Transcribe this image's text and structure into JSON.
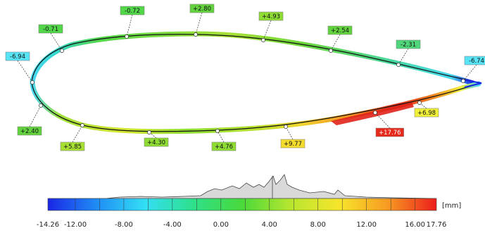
{
  "diagram": {
    "deviation_labels": [
      {
        "id": "l01",
        "text": "-6.94",
        "fill": "#58e4f4"
      },
      {
        "id": "l02",
        "text": "-0.71",
        "fill": "#52d64a"
      },
      {
        "id": "l03",
        "text": "-0.72",
        "fill": "#52d64a"
      },
      {
        "id": "l04",
        "text": "+2.80",
        "fill": "#62d33e"
      },
      {
        "id": "l05",
        "text": "+4.93",
        "fill": "#8edc34"
      },
      {
        "id": "l06",
        "text": "+2.54",
        "fill": "#62d33e"
      },
      {
        "id": "l07",
        "text": "-2.31",
        "fill": "#4fd67a"
      },
      {
        "id": "l08",
        "text": "-6.74",
        "fill": "#58e4f4"
      },
      {
        "id": "l09",
        "text": "+2.40",
        "fill": "#62d33e"
      },
      {
        "id": "l10",
        "text": "+5.85",
        "fill": "#a7e033"
      },
      {
        "id": "l11",
        "text": "+4.30",
        "fill": "#8edc34"
      },
      {
        "id": "l12",
        "text": "+4.76",
        "fill": "#8edc34"
      },
      {
        "id": "l13",
        "text": "+9.77",
        "fill": "#f3dc2e"
      },
      {
        "id": "l14",
        "text": "+17.76",
        "fill": "#e52a1c"
      },
      {
        "id": "l15",
        "text": "+6.98",
        "fill": "#f0f03a"
      }
    ],
    "colorbar": {
      "unit": "[mm]",
      "min": -14.26,
      "max": 17.76,
      "tick_labels": [
        "-14.26",
        "-12.00",
        "-8.00",
        "-4.00",
        "0.00",
        "4.00",
        "8.00",
        "12.00",
        "16.00",
        "17.76"
      ],
      "stops": [
        "#1a26e6",
        "#1f8cf5",
        "#33dff5",
        "#2ee08a",
        "#49d93a",
        "#b8e62f",
        "#f7e52b",
        "#f79a22",
        "#ec1c1c"
      ]
    }
  }
}
